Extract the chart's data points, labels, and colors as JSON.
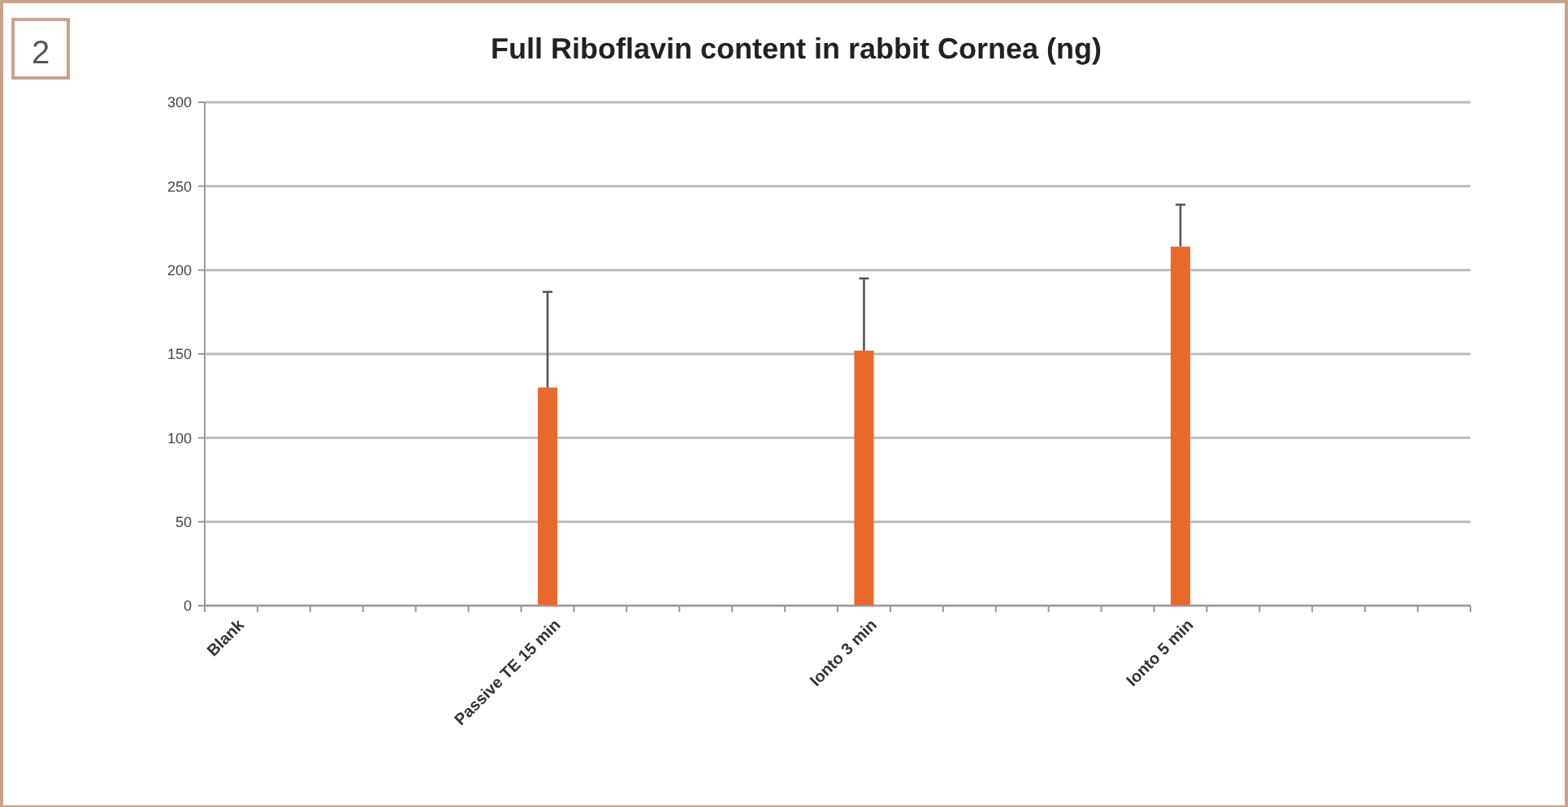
{
  "chart_data": {
    "type": "bar",
    "title": "Full Riboflavin content in rabbit Cornea (ng)",
    "annotations": [
      "2"
    ],
    "categories": [
      "Blank",
      null,
      null,
      null,
      null,
      null,
      "Passive TE 15 min",
      null,
      null,
      null,
      null,
      null,
      "Ionto 3 min",
      null,
      null,
      null,
      null,
      null,
      "Ionto 5 min",
      null,
      null,
      null,
      null,
      null
    ],
    "values": [
      0,
      null,
      null,
      null,
      null,
      null,
      130,
      null,
      null,
      null,
      null,
      null,
      152,
      null,
      null,
      null,
      null,
      null,
      214,
      null,
      null,
      null,
      null,
      null
    ],
    "errors": [
      null,
      null,
      null,
      null,
      null,
      null,
      [
        130,
        187
      ],
      null,
      null,
      null,
      null,
      null,
      [
        152,
        195
      ],
      null,
      null,
      null,
      null,
      null,
      [
        214,
        239
      ],
      null,
      null,
      null,
      null,
      null
    ],
    "color": "#e8692a",
    "ylim": [
      0,
      300
    ],
    "yticks": [
      0,
      50,
      100,
      150,
      200,
      250,
      300
    ],
    "grid": "y"
  }
}
